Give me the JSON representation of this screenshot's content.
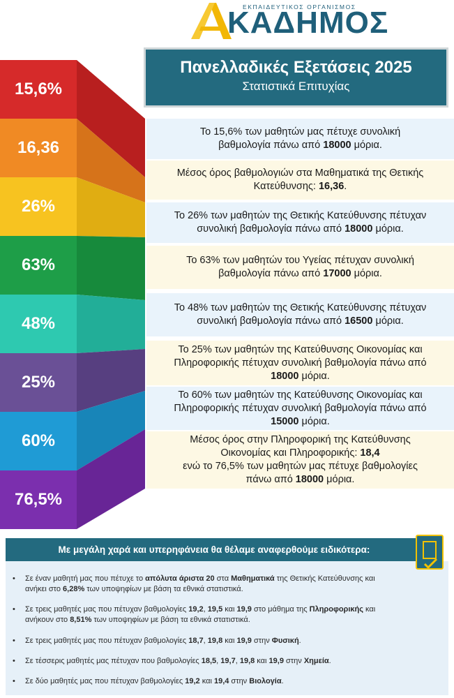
{
  "logo": {
    "subtitle": "ΕΚΠΑΙΔΕΥΤΙΚΟΣ ΟΡΓΑΝΙΣΜΟΣ",
    "name": "ΚΑΔΗΜΟΣ",
    "icon": "akadimos-a-logo"
  },
  "header": {
    "title": "Πανελλαδικές Εξετάσεις 2025",
    "subtitle": "Στατιστικά Επιτυχίας"
  },
  "stats": [
    {
      "value": "15,6%",
      "color": "#d62a2a"
    },
    {
      "value": "16,36",
      "color": "#f08a24"
    },
    {
      "value": "26%",
      "color": "#f7c320"
    },
    {
      "value": "63%",
      "color": "#1e9e48"
    },
    {
      "value": "48%",
      "color": "#2ec9b0"
    },
    {
      "value": "25%",
      "color": "#6a5096"
    },
    {
      "value": "60%",
      "color": "#1f9bd5"
    },
    {
      "value": "76,5%",
      "color": "#7b2fae"
    }
  ],
  "info": [
    {
      "l1": "Το 15,6% των μαθητών μας πέτυχε συνολική",
      "l2a": "βαθμολογία πάνω από ",
      "l2b": "18000",
      "l2c": " μόρια."
    },
    {
      "l1": "Μέσος όρος βαθμολογιών στα Μαθηματικά της Θετικής",
      "l2a": "Κατεύθυνσης: ",
      "l2b": "16,36",
      "l2c": "."
    },
    {
      "l1": "Το 26% των μαθητών της Θετικής Κατεύθυνσης πέτυχαν",
      "l2a": "συνολική βαθμολογία πάνω από ",
      "l2b": "18000",
      "l2c": " μόρια."
    },
    {
      "l1": "Το 63% των μαθητών του Υγείας πέτυχαν συνολική",
      "l2a": "βαθμολογία πάνω από ",
      "l2b": "17000",
      "l2c": " μόρια."
    },
    {
      "l1": "Το 48% των μαθητών της Θετικής Κατεύθυνσης πέτυχαν",
      "l2a": "συνολική βαθμολογία πάνω από ",
      "l2b": "16500",
      "l2c": " μόρια."
    },
    {
      "l1": "Το 25% των μαθητών της Κατεύθυνσης Οικονομίας και",
      "l2": "Πληροφορικής πέτυχαν συνολική βαθμολογία πάνω από",
      "l3a": "",
      "l3b": "18000",
      "l3c": " μόρια."
    },
    {
      "l1": "Το 60% των μαθητών της Κατεύθυνσης Οικονομίας και",
      "l2": "Πληροφορικής πέτυχαν συνολική βαθμολογία πάνω από",
      "l3a": "",
      "l3b": "15000",
      "l3c": " μόρια."
    },
    {
      "l1": "Μέσος όρος στην Πληροφορική της Κατεύθυνσης",
      "l2a": "Οικονομίας και Πληροφορικής: ",
      "l2b": "18,4",
      "l3": "ενώ το 76,5% των μαθητών μας πέτυχε βαθμολογίες",
      "l4a": "πάνω από ",
      "l4b": "18000",
      "l4c": " μόρια."
    }
  ],
  "bottom": {
    "heading": "Με μεγάλη χαρά και υπερηφάνεια θα θέλαμε αναφερθούμε ειδικότερα:",
    "bullets": [
      {
        "parts": [
          "Σε έναν μαθητή μας που πέτυχε το ",
          "απόλυτα άριστα 20",
          " στα ",
          "Μαθηματικά",
          " της Θετικής Κατεύθυνσης και"
        ],
        "line2": [
          "ανήκει στο ",
          "6,28%",
          " των υποψηφίων με βάση τα εθνικά στατιστικά."
        ]
      },
      {
        "parts": [
          "Σε τρεις μαθητές μας που πέτυχαν βαθμολογίες ",
          "19,2",
          ",  ",
          "19,5",
          " και ",
          "19,9",
          " στο μάθημα της ",
          "Πληροφορικής",
          " και"
        ],
        "line2": [
          "ανήκουν στο ",
          "8,51%",
          " των υποψηφίων με βάση τα εθνικά στατιστικά."
        ]
      },
      {
        "parts": [
          "Σε τρεις μαθητές μας που πέτυχαν βαθμολογίες ",
          "18,7",
          ", ",
          "19,8",
          " και ",
          "19,9",
          " στην ",
          "Φυσική",
          "."
        ]
      },
      {
        "parts": [
          "Σε τέσσερις μαθητές μας πέτυχαν που βαθμολογίες ",
          "18,5",
          ", ",
          "19,7",
          ", ",
          "19,8",
          " και ",
          "19,9",
          " στην ",
          "Χημεία",
          "."
        ]
      },
      {
        "parts": [
          "Σε δύο μαθητές μας που πέτυχαν βαθμολογίες ",
          "19,2",
          " και ",
          "19,4",
          " στην ",
          "Βιολογία",
          "."
        ]
      }
    ],
    "bullet_symbol": "•",
    "badge_icon": "bookmark-check-icon"
  }
}
